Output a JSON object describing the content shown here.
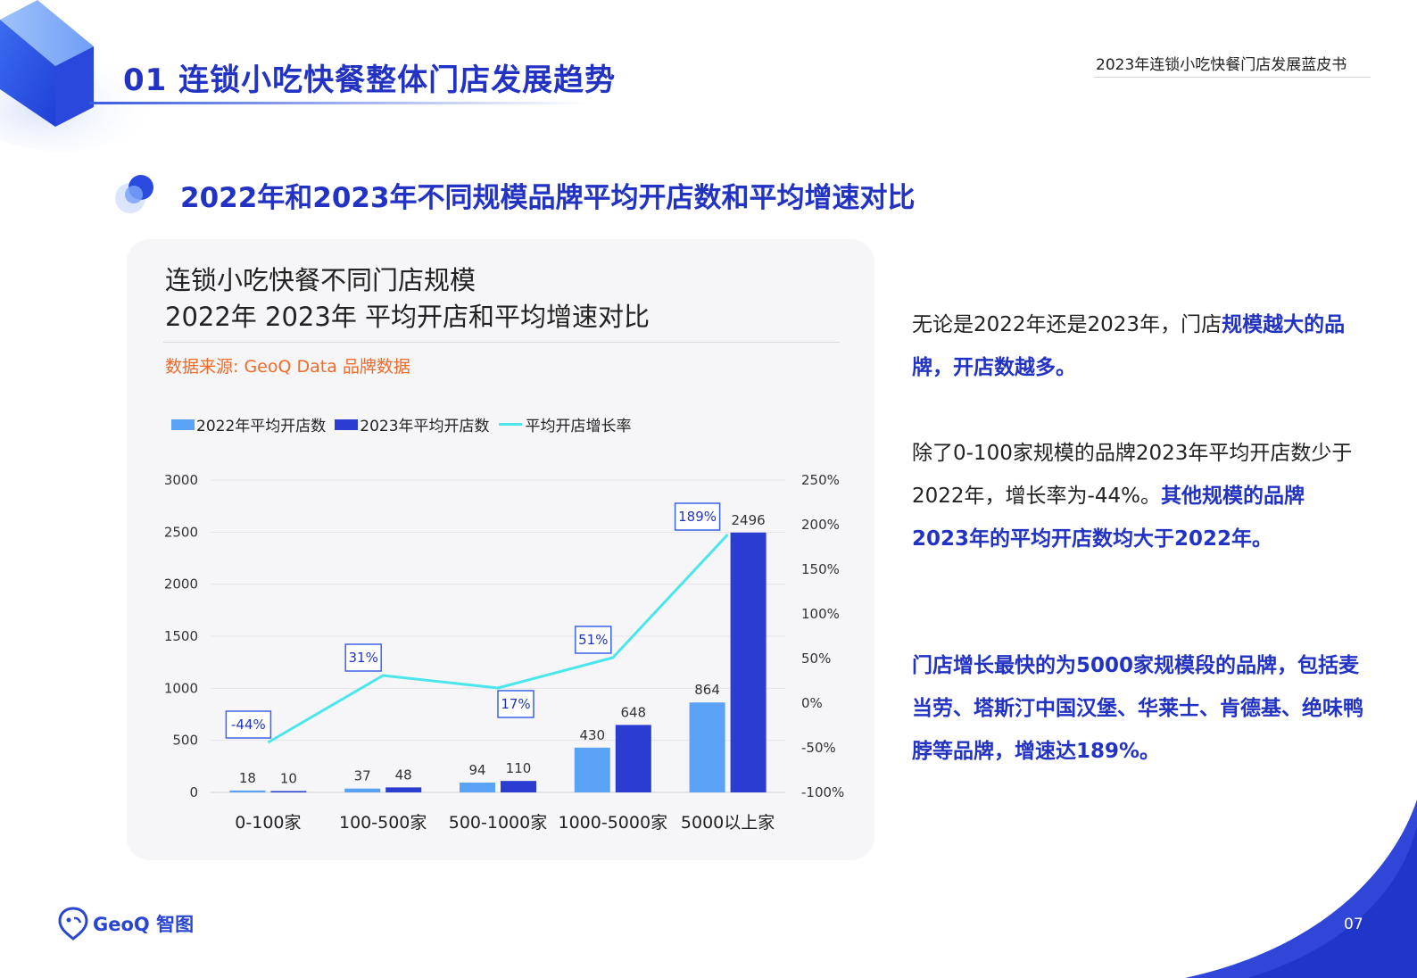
{
  "header": {
    "section_title": "01 连锁小吃快餐整体门店发展趋势",
    "report_title": "2023年连锁小吃快餐门店发展蓝皮书",
    "subtitle": "2022年和2023年不同规模品牌平均开店数和平均增速对比"
  },
  "chart_card": {
    "title_line1": "连锁小吃快餐不同门店规模",
    "title_line2": "2022年 2023年 平均开店和平均增速对比",
    "source": "数据来源: GeoQ Data 品牌数据"
  },
  "chart_data": {
    "type": "bar",
    "categories": [
      "0-100家",
      "100-500家",
      "500-1000家",
      "1000-5000家",
      "5000以上家"
    ],
    "series": [
      {
        "name": "2022年平均开店数",
        "type": "bar",
        "axis": "left",
        "color": "#5aa2f5",
        "values": [
          18,
          37,
          94,
          430,
          864
        ]
      },
      {
        "name": "2023年平均开店数",
        "type": "bar",
        "axis": "left",
        "color": "#2b3dd1",
        "values": [
          10,
          48,
          110,
          648,
          2496
        ]
      },
      {
        "name": "平均开店增长率",
        "type": "line",
        "axis": "right",
        "color": "#4ae6ec",
        "values": [
          -44,
          31,
          17,
          51,
          189
        ],
        "labels": [
          "-44%",
          "31%",
          "17%",
          "51%",
          "189%"
        ]
      }
    ],
    "y_left": {
      "min": 0,
      "max": 3000,
      "ticks": [
        "3000",
        "2500",
        "2000",
        "1500",
        "1000",
        "500",
        "0"
      ]
    },
    "y_right": {
      "min": -100,
      "max": 250,
      "ticks": [
        "250%",
        "200%",
        "150%",
        "100%",
        "50%",
        "0%",
        "-50%",
        "-100%"
      ]
    },
    "grid": true,
    "legend_position": "top-left"
  },
  "body_text": {
    "p1_plain": "无论是2022年还是2023年，门店",
    "p1_highlight": "规模越大的品牌，开店数越多。",
    "p2_plain": "除了0-100家规模的品牌2023年平均开店数少于2022年，增长率为-44%。",
    "p2_highlight": "其他规模的品牌2023年的平均开店数均大于2022年。",
    "p3_highlight": "门店增长最快的为5000家规模段的品牌，包括麦当劳、塔斯汀中国汉堡、华莱士、肯德基、绝味鸭脖等品牌，增速达189%。"
  },
  "footer": {
    "logo_text": "GeoQ 智图",
    "page_number": "07"
  },
  "colors": {
    "accent": "#2233c4",
    "source": "#f06a2a",
    "bar2022": "#5aa2f5",
    "bar2023": "#2b3dd1",
    "growth_line": "#4ae6ec"
  }
}
